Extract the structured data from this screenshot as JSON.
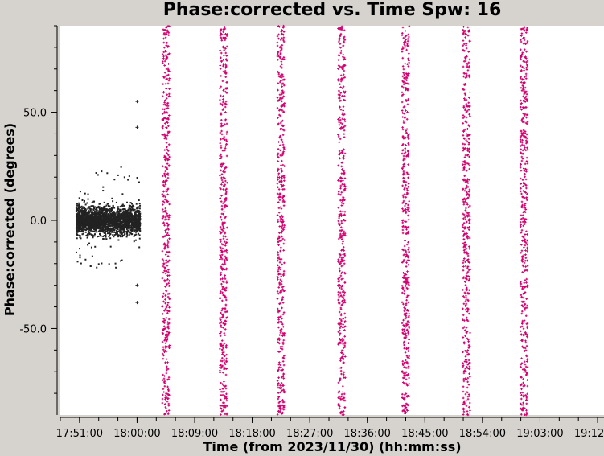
{
  "chart_data": {
    "type": "scatter",
    "title": "Phase:corrected vs. Time Spw: 16",
    "xlabel": "Time (from 2023/11/30) (hh:mm:ss)",
    "ylabel": "Phase:corrected (degrees)",
    "x_ticks": [
      "17:51:00",
      "18:00:00",
      "18:09:00",
      "18:18:00",
      "18:27:00",
      "18:36:00",
      "18:45:00",
      "18:54:00",
      "19:03:00",
      "19:12:00"
    ],
    "y_ticks": [
      "50.0",
      "0.0",
      "-50.0"
    ],
    "ylim": [
      -90,
      90
    ],
    "xlim": [
      "17:48:00",
      "19:13:00"
    ],
    "grid": false,
    "series": [
      {
        "color": "#222222",
        "points": [
          {
            "t_start": "17:50:30",
            "t_end": "18:00:30",
            "phase_min": -22,
            "phase_max": 25,
            "core_min": -10,
            "core_max": 10
          },
          {
            "t": "18:00:00",
            "phase": 55
          },
          {
            "t": "18:00:00",
            "phase": 43
          },
          {
            "t": "18:00:00",
            "phase": -38
          },
          {
            "t": "18:00:00",
            "phase": -30
          }
        ]
      },
      {
        "color": "#d4006e",
        "scans": [
          {
            "t": "18:04:30",
            "phase_range": [
              -90,
              90
            ]
          },
          {
            "t": "18:13:30",
            "phase_range": [
              -90,
              90
            ]
          },
          {
            "t": "18:22:30",
            "phase_range": [
              -90,
              90
            ]
          },
          {
            "t": "18:32:00",
            "phase_range": [
              -90,
              90
            ]
          },
          {
            "t": "18:42:00",
            "phase_range": [
              -90,
              90
            ]
          },
          {
            "t": "18:51:30",
            "phase_range": [
              -90,
              90
            ]
          },
          {
            "t": "19:00:30",
            "phase_range": [
              -90,
              90
            ]
          }
        ]
      }
    ]
  }
}
